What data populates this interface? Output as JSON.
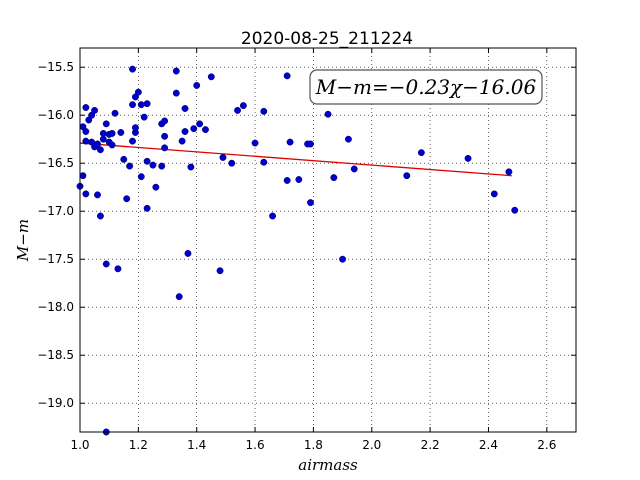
{
  "chart_data": {
    "type": "scatter",
    "title": "2020-08-25_211224",
    "xlabel": "airmass",
    "ylabel": "M−m",
    "xlim": [
      1.0,
      2.7
    ],
    "ylim": [
      -19.3,
      -15.3
    ],
    "y_inverted": true,
    "grid": true,
    "x_ticks": [
      1.0,
      1.2,
      1.4,
      1.6,
      1.8,
      2.0,
      2.2,
      2.4,
      2.6
    ],
    "x_tick_labels": [
      "1.0",
      "1.2",
      "1.4",
      "1.6",
      "1.8",
      "2.0",
      "2.2",
      "2.4",
      "2.6"
    ],
    "y_ticks": [
      -15.5,
      -16.0,
      -16.5,
      -17.0,
      -17.5,
      -18.0,
      -18.5,
      -19.0
    ],
    "y_tick_labels": [
      "−15.5",
      "−16.0",
      "−16.5",
      "−17.0",
      "−17.5",
      "−18.0",
      "−18.5",
      "−19.0"
    ],
    "annotation": "M−m=−0.23χ−16.06",
    "point_color": "#0000cc",
    "fit_color": "#dd0000",
    "fit_line": {
      "slope": -0.23,
      "intercept": -16.06,
      "x_range": [
        1.0,
        2.48
      ]
    },
    "points": [
      [
        1.0,
        -16.74
      ],
      [
        1.01,
        -16.63
      ],
      [
        1.02,
        -16.82
      ],
      [
        1.01,
        -16.12
      ],
      [
        1.02,
        -16.17
      ],
      [
        1.02,
        -15.92
      ],
      [
        1.02,
        -16.27
      ],
      [
        1.03,
        -16.05
      ],
      [
        1.04,
        -16.0
      ],
      [
        1.04,
        -16.28
      ],
      [
        1.05,
        -16.33
      ],
      [
        1.05,
        -15.95
      ],
      [
        1.06,
        -16.83
      ],
      [
        1.06,
        -16.3
      ],
      [
        1.07,
        -17.05
      ],
      [
        1.07,
        -16.36
      ],
      [
        1.08,
        -16.19
      ],
      [
        1.08,
        -16.25
      ],
      [
        1.09,
        -16.09
      ],
      [
        1.09,
        -17.55
      ],
      [
        1.1,
        -16.28
      ],
      [
        1.1,
        -16.2
      ],
      [
        1.11,
        -16.31
      ],
      [
        1.11,
        -16.19
      ],
      [
        1.12,
        -15.98
      ],
      [
        1.13,
        -17.6
      ],
      [
        1.14,
        -16.18
      ],
      [
        1.15,
        -16.46
      ],
      [
        1.16,
        -16.87
      ],
      [
        1.17,
        -16.53
      ],
      [
        1.18,
        -16.27
      ],
      [
        1.18,
        -15.89
      ],
      [
        1.18,
        -15.52
      ],
      [
        1.19,
        -16.18
      ],
      [
        1.19,
        -16.13
      ],
      [
        1.19,
        -15.81
      ],
      [
        1.2,
        -15.76
      ],
      [
        1.21,
        -16.64
      ],
      [
        1.21,
        -15.89
      ],
      [
        1.22,
        -16.02
      ],
      [
        1.23,
        -16.48
      ],
      [
        1.23,
        -15.88
      ],
      [
        1.23,
        -16.97
      ],
      [
        1.25,
        -16.52
      ],
      [
        1.26,
        -16.75
      ],
      [
        1.28,
        -16.53
      ],
      [
        1.28,
        -16.09
      ],
      [
        1.29,
        -16.34
      ],
      [
        1.29,
        -16.06
      ],
      [
        1.29,
        -16.22
      ],
      [
        1.33,
        -15.77
      ],
      [
        1.33,
        -15.54
      ],
      [
        1.34,
        -17.89
      ],
      [
        1.35,
        -16.27
      ],
      [
        1.36,
        -16.17
      ],
      [
        1.36,
        -15.93
      ],
      [
        1.37,
        -17.44
      ],
      [
        1.38,
        -16.54
      ],
      [
        1.39,
        -16.14
      ],
      [
        1.4,
        -15.69
      ],
      [
        1.41,
        -16.09
      ],
      [
        1.43,
        -16.15
      ],
      [
        1.45,
        -15.6
      ],
      [
        1.48,
        -17.62
      ],
      [
        1.49,
        -16.44
      ],
      [
        1.52,
        -16.5
      ],
      [
        1.54,
        -15.95
      ],
      [
        1.56,
        -15.9
      ],
      [
        1.6,
        -16.29
      ],
      [
        1.63,
        -16.49
      ],
      [
        1.63,
        -15.96
      ],
      [
        1.66,
        -17.05
      ],
      [
        1.71,
        -16.68
      ],
      [
        1.71,
        -15.59
      ],
      [
        1.72,
        -16.28
      ],
      [
        1.75,
        -16.67
      ],
      [
        1.78,
        -16.3
      ],
      [
        1.79,
        -16.3
      ],
      [
        1.79,
        -16.91
      ],
      [
        1.85,
        -15.99
      ],
      [
        1.87,
        -16.65
      ],
      [
        1.9,
        -17.5
      ],
      [
        1.92,
        -16.25
      ],
      [
        1.94,
        -16.56
      ],
      [
        2.12,
        -16.63
      ],
      [
        2.17,
        -16.39
      ],
      [
        2.33,
        -16.45
      ],
      [
        2.42,
        -16.82
      ],
      [
        2.47,
        -16.59
      ],
      [
        2.49,
        -16.99
      ],
      [
        1.09,
        -19.3
      ]
    ]
  }
}
